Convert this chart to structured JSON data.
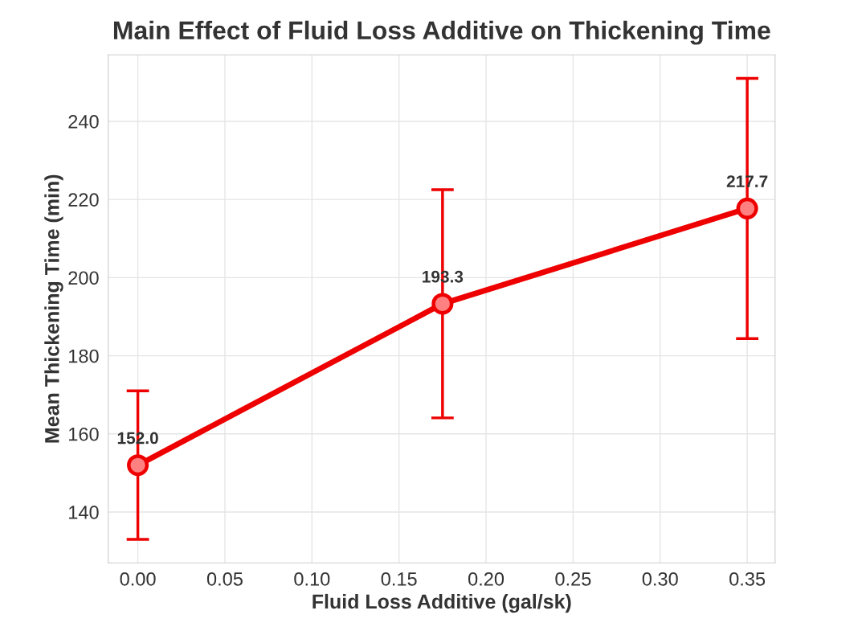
{
  "chart_data": {
    "type": "line",
    "title": "Main Effect of Fluid Loss Additive on Thickening Time",
    "xlabel": "Fluid Loss Additive (gal/sk)",
    "ylabel": "Mean Thickening Time (min)",
    "x": [
      0.0,
      0.175,
      0.35
    ],
    "series": [
      {
        "color": "#ee0000",
        "values": [
          152.0,
          193.3,
          217.7
        ],
        "errors": [
          19,
          29.2,
          33.3
        ],
        "value_labels": [
          "152.0",
          "193.3",
          "217.7"
        ]
      }
    ],
    "xlim": [
      -0.017,
      0.366
    ],
    "xticks": [
      {
        "value": 0,
        "label": "0.00"
      },
      {
        "value": 0.05,
        "label": "0.05"
      },
      {
        "value": 0.1,
        "label": "0.10"
      },
      {
        "value": 0.15,
        "label": "0.15"
      },
      {
        "value": 0.2,
        "label": "0.20"
      },
      {
        "value": 0.25,
        "label": "0.25"
      },
      {
        "value": 0.3,
        "label": "0.30"
      },
      {
        "value": 0.35,
        "label": "0.35"
      }
    ],
    "ylim": [
      127,
      257
    ],
    "yticks": [
      140,
      160,
      180,
      200,
      220,
      240
    ],
    "grid": true,
    "marker": "circle",
    "line_style": "solid"
  }
}
